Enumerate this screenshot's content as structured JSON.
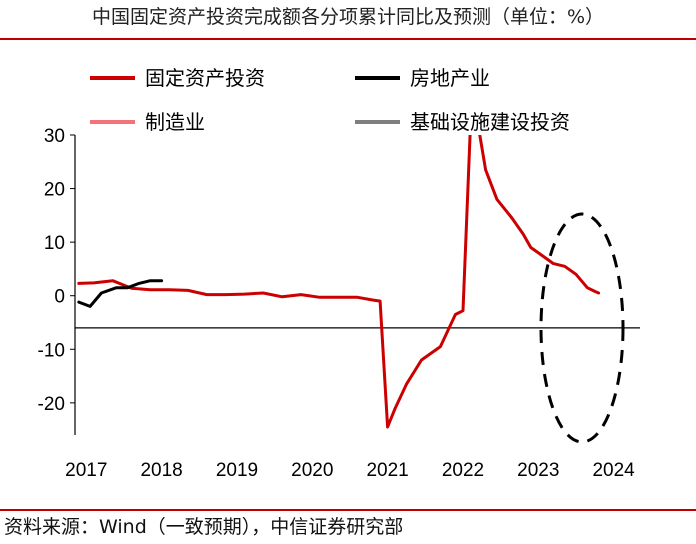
{
  "title": "中国固定资产投资完成额各分项累计同比及预测（单位：%）",
  "source": "资料来源：Wind（一致预期），中信证券研究部",
  "chart_data": {
    "type": "line",
    "title": "中国固定资产投资完成额各分项累计同比及预测（单位：%）",
    "xlabel": "",
    "ylabel": "",
    "xlim": [
      2016.95,
      2024.45
    ],
    "ylim": [
      -26,
      30
    ],
    "x_ticks": [
      {
        "label": "2017",
        "value": 2017.0
      },
      {
        "label": "2018",
        "value": 2018.0
      },
      {
        "label": "2019",
        "value": 2019.0
      },
      {
        "label": "2020",
        "value": 2020.0
      },
      {
        "label": "2021",
        "value": 2021.0
      },
      {
        "label": "2022",
        "value": 2022.0
      },
      {
        "label": "2023",
        "value": 2023.0
      },
      {
        "label": "2024",
        "value": 2024.0
      }
    ],
    "y_ticks": [
      {
        "label": "30",
        "value": 30
      },
      {
        "label": "20",
        "value": 20
      },
      {
        "label": "10",
        "value": 10
      },
      {
        "label": "0",
        "value": 0
      },
      {
        "label": "-10",
        "value": -10
      },
      {
        "label": "-20",
        "value": -20
      }
    ],
    "grid": false,
    "zero_line": true,
    "legend_placement": "top",
    "series": [
      {
        "name": "固定资产投资",
        "color": "#cc0000",
        "actual": [
          [
            2017.0,
            2.3
          ],
          [
            2017.2,
            2.4
          ],
          [
            2017.45,
            2.8
          ],
          [
            2017.7,
            1.4
          ],
          [
            2017.95,
            1.1
          ],
          [
            2018.2,
            1.1
          ],
          [
            2018.45,
            1.0
          ],
          [
            2018.7,
            0.2
          ],
          [
            2018.95,
            0.2
          ],
          [
            2019.2,
            0.3
          ],
          [
            2019.45,
            0.5
          ],
          [
            2019.7,
            -0.2
          ],
          [
            2019.95,
            0.2
          ],
          [
            2020.2,
            -0.3
          ],
          [
            2020.45,
            -0.3
          ],
          [
            2020.7,
            -0.3
          ],
          [
            2020.9,
            -0.8
          ],
          [
            2021.0,
            -1.0
          ],
          [
            2021.1,
            -24.5
          ],
          [
            2021.2,
            -21.0
          ],
          [
            2021.35,
            -16.5
          ],
          [
            2021.55,
            -12.0
          ],
          [
            2021.8,
            -9.5
          ],
          [
            2022.0,
            -3.5
          ],
          [
            2022.1,
            -2.8
          ],
          [
            2022.2,
            32.0
          ],
          [
            2022.3,
            32.0
          ],
          [
            2022.4,
            23.5
          ],
          [
            2022.55,
            18.0
          ],
          [
            2022.75,
            14.5
          ],
          [
            2022.9,
            11.5
          ],
          [
            2023.0,
            9.0
          ],
          [
            2023.15,
            7.5
          ],
          [
            2023.3,
            6.0
          ],
          [
            2023.45,
            5.5
          ],
          [
            2023.6,
            4.0
          ],
          [
            2023.75,
            1.5
          ],
          [
            2023.85,
            0.8
          ],
          [
            2023.9,
            0.5
          ]
        ],
        "forecast": []
      },
      {
        "name": "房地产业",
        "color": "#000000",
        "actual": [
          [
            2017.0,
            -1.2
          ],
          [
            2017.15,
            -2.0
          ],
          [
            2017.3,
            0.5
          ],
          [
            2017.5,
            1.5
          ],
          [
            2017.65,
            1.5
          ],
          [
            2017.8,
            2.3
          ],
          [
            2017.95,
            2.8
          ],
          [
            2018.1,
            2.8
          ]
        ],
        "forecast": []
      },
      {
        "name": "制造业",
        "color": "#f4727a",
        "actual": [],
        "forecast": []
      },
      {
        "name": "基础设施建设投资",
        "color": "#7f7f7f",
        "actual": [],
        "forecast": []
      }
    ]
  }
}
